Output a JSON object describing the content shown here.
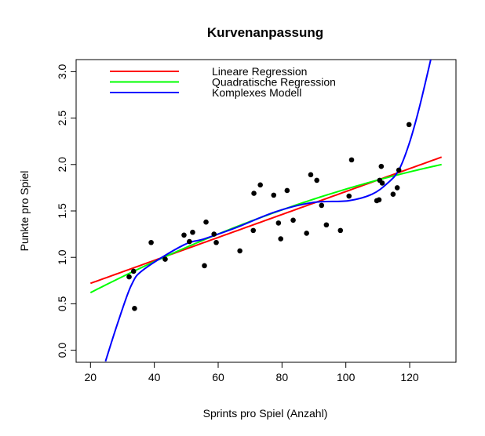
{
  "chart_data": {
    "type": "scatter",
    "title": "Kurvenanpassung",
    "xlabel": "Sprints pro Spiel (Anzahl)",
    "ylabel": "Punkte pro Spiel",
    "xlim": [
      15.5,
      134.5
    ],
    "ylim": [
      -0.13,
      3.13
    ],
    "xticks": [
      20,
      40,
      60,
      80,
      100,
      120
    ],
    "yticks": [
      0.0,
      0.5,
      1.0,
      1.5,
      2.0,
      2.5,
      3.0
    ],
    "ytick_labels": [
      "0.0",
      "0.5",
      "1.0",
      "1.5",
      "2.0",
      "2.5",
      "3.0"
    ],
    "grid": false,
    "legend_position": "top-left",
    "points": {
      "x": [
        32.1,
        33.5,
        33.8,
        39.0,
        43.4,
        49.3,
        52.0,
        51.0,
        56.2,
        55.7,
        58.7,
        59.4,
        66.8,
        71.0,
        71.2,
        73.2,
        77.4,
        78.9,
        79.6,
        81.6,
        83.5,
        87.7,
        89.0,
        90.9,
        92.4,
        93.9,
        98.3,
        101.0,
        101.8,
        109.7,
        110.4,
        111.1,
        110.6,
        111.4,
        114.8,
        116.1,
        116.6,
        119.8
      ],
      "y": [
        0.79,
        0.85,
        0.45,
        1.16,
        0.98,
        1.24,
        1.27,
        1.17,
        1.38,
        0.91,
        1.25,
        1.16,
        1.07,
        1.29,
        1.69,
        1.78,
        1.67,
        1.37,
        1.2,
        1.72,
        1.4,
        1.26,
        1.89,
        1.83,
        1.56,
        1.35,
        1.29,
        1.66,
        2.05,
        1.61,
        1.62,
        1.98,
        1.83,
        1.8,
        1.68,
        1.75,
        1.94,
        2.43
      ],
      "color": "#000000"
    },
    "series": [
      {
        "name": "Lineare Regression",
        "color": "#ff0000",
        "model": "linear",
        "coef": [
          0.473,
          0.01236
        ],
        "x_range": [
          20,
          130
        ]
      },
      {
        "name": "Quadratische Regression",
        "color": "#00ff00",
        "model": "quadratic",
        "coef": [
          0.2487,
          0.01949,
          -4.63e-05
        ],
        "x_range": [
          20,
          130
        ]
      },
      {
        "name": "Komplexes Modell",
        "color": "#0000ff",
        "model": "curve",
        "x": [
          24.7,
          28.6,
          32.8,
          36.7,
          49.0,
          55.7,
          65.6,
          77.9,
          89.5,
          100.8,
          108.2,
          113.1,
          116.6,
          119.8,
          123.0,
          126.6
        ],
        "y": [
          -0.12,
          0.3,
          0.7,
          0.87,
          1.13,
          1.2,
          1.32,
          1.49,
          1.59,
          1.61,
          1.68,
          1.8,
          1.94,
          2.22,
          2.61,
          3.13
        ]
      }
    ]
  }
}
